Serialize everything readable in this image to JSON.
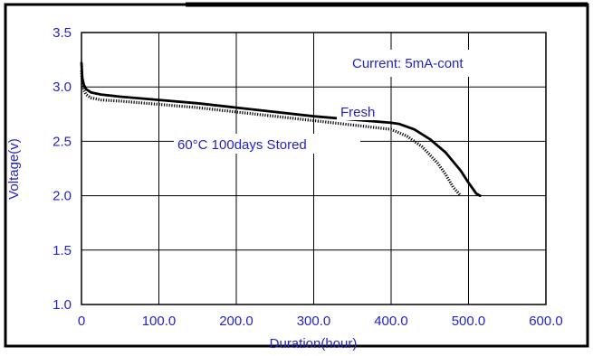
{
  "chart_data": {
    "type": "line",
    "title": "",
    "xlabel": "Duration(hour)",
    "ylabel": "Voltage(v)",
    "xlim": [
      0,
      600
    ],
    "ylim": [
      1.0,
      3.5
    ],
    "x_ticks": [
      0,
      100,
      200,
      300,
      400,
      500,
      600
    ],
    "x_tick_labels": [
      "0",
      "100.0",
      "200.0",
      "300.0",
      "400.0",
      "500.0",
      "600.0"
    ],
    "y_ticks": [
      1.0,
      1.5,
      2.0,
      2.5,
      3.0,
      3.5
    ],
    "y_tick_labels": [
      "1.0",
      "1.5",
      "2.0",
      "2.5",
      "3.0",
      "3.5"
    ],
    "grid": true,
    "annotations": [
      {
        "text": "Current: 5mA-cont"
      }
    ],
    "series": [
      {
        "name": "Fresh",
        "line_style": "solid",
        "x": [
          0,
          1,
          3,
          6,
          12,
          25,
          50,
          100,
          150,
          200,
          250,
          300,
          350,
          400,
          410,
          430,
          450,
          470,
          490,
          500,
          510,
          515
        ],
        "y": [
          3.22,
          3.08,
          3.02,
          2.98,
          2.95,
          2.93,
          2.91,
          2.88,
          2.85,
          2.81,
          2.77,
          2.73,
          2.7,
          2.67,
          2.66,
          2.61,
          2.52,
          2.4,
          2.23,
          2.12,
          2.02,
          2.0
        ]
      },
      {
        "name": "60°C 100days Stored",
        "line_style": "dotted",
        "x": [
          0,
          1,
          3,
          6,
          12,
          25,
          50,
          100,
          150,
          200,
          250,
          300,
          350,
          400,
          420,
          440,
          460,
          470,
          480,
          490
        ],
        "y": [
          3.15,
          3.03,
          2.97,
          2.93,
          2.9,
          2.88,
          2.87,
          2.84,
          2.81,
          2.77,
          2.73,
          2.69,
          2.65,
          2.61,
          2.55,
          2.45,
          2.3,
          2.2,
          2.08,
          2.0
        ]
      }
    ],
    "colors": {
      "axis_text": "#2323c8",
      "frame": "#000000",
      "grid": "#000000",
      "curve": "#000000"
    }
  }
}
